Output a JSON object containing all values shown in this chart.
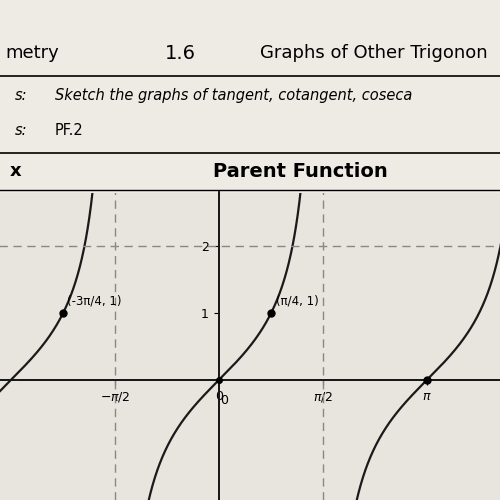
{
  "title_left": "metry",
  "title_center": "1.6",
  "title_right": "Graphs of Other Trigonon",
  "label1_key": "s:",
  "label1_val": "Sketch the graphs of tangent, cotangent, coseca",
  "label2_key": "s:",
  "label2_val": "PF.2",
  "col_header_left": "x",
  "col_header_right": "Parent Function",
  "point1_label": "(-3π/4, 1)",
  "point2_label": "(π/4, 1)",
  "dashed_line_y": 2.0,
  "bg_top_color": "#c8b89a",
  "paper_color": "#eeeae4",
  "graph_bg": "#e8e4de",
  "line_color": "#1a1a1a",
  "dashed_color": "#888888",
  "header_fontsize": 13,
  "info_fontsize": 10.5,
  "col_header_fontsize": 13
}
